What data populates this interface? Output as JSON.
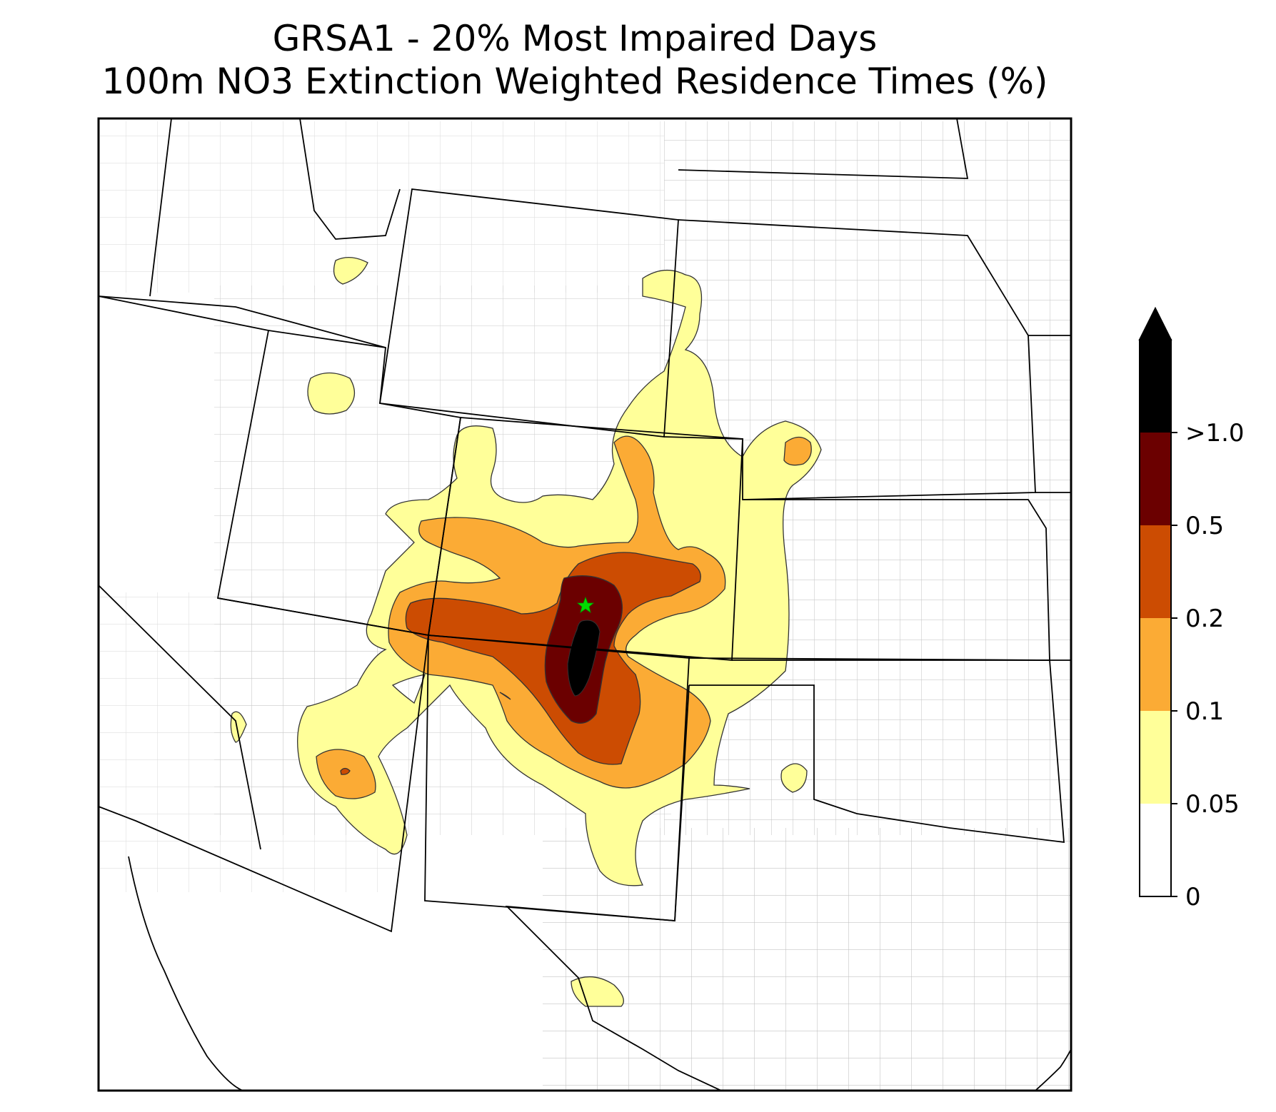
{
  "title": {
    "line1": "GRSA1 - 20% Most Impaired Days",
    "line2": "100m NO3 Extinction Weighted Residence Times (%)"
  },
  "colorbar": {
    "levels": [
      "0",
      "0.05",
      "0.1",
      "0.2",
      "0.5",
      ">1.0"
    ],
    "colors": [
      "#ffffff",
      "#ffff99",
      "#fbab35",
      "#cc4c02",
      "#6b0000",
      "#000000"
    ],
    "extend": "max"
  },
  "map": {
    "background": "#ffffff",
    "county_line_color": "#aaaaaa",
    "state_line_color": "#000000",
    "receptor_marker_color": "#00dd00",
    "receptor_icon": "star-icon"
  }
}
